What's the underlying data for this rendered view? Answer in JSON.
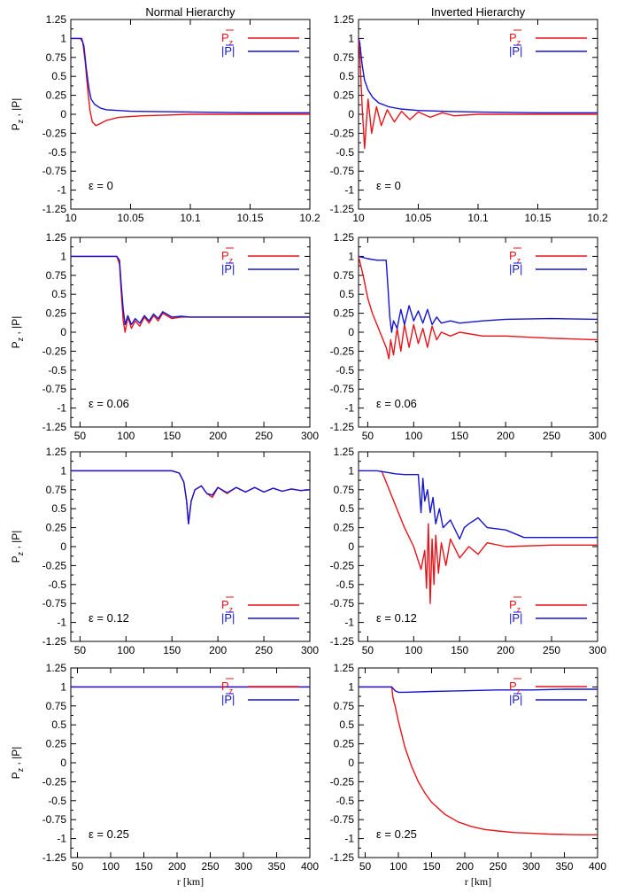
{
  "columns": [
    "Normal Hierarchy",
    "Inverted Hierarchy"
  ],
  "xlabel": "r [km]",
  "ylabel": {
    "pz": "P",
    "pz_sub": "z",
    "sep": " , ",
    "pabs": "|P|"
  },
  "legend": {
    "pz": "P",
    "pz_sub": "z",
    "pabs": "|P|"
  },
  "colors": {
    "pz": "#e8141a",
    "pabs": "#1515d0",
    "axis": "#000000"
  },
  "chart_data": [
    {
      "type": "line",
      "panel": "normal-eps-0",
      "hierarchy": "Normal Hierarchy",
      "annotation": "ε = 0",
      "xlim": [
        10,
        10.2
      ],
      "ylim": [
        -1.25,
        1.25
      ],
      "xticks": [
        "10",
        "10.05",
        "10.1",
        "10.15",
        "10.2"
      ],
      "yticks": [
        "-1.25",
        "-1",
        "-0.75",
        "-0.5",
        "-0.25",
        "0",
        "0.25",
        "0.5",
        "0.75",
        "1",
        "1.25"
      ],
      "legend_position": "top-right",
      "series": [
        {
          "key": "pz",
          "x": [
            10,
            10.008,
            10.01,
            10.012,
            10.014,
            10.016,
            10.018,
            10.021,
            10.025,
            10.03,
            10.04,
            10.06,
            10.08,
            10.1,
            10.15,
            10.2
          ],
          "y": [
            1,
            1,
            0.95,
            0.7,
            0.35,
            0.05,
            -0.1,
            -0.15,
            -0.12,
            -0.08,
            -0.04,
            -0.02,
            -0.01,
            0,
            0,
            0
          ]
        },
        {
          "key": "pabs",
          "x": [
            10,
            10.009,
            10.011,
            10.013,
            10.015,
            10.017,
            10.02,
            10.025,
            10.03,
            10.05,
            10.1,
            10.15,
            10.2
          ],
          "y": [
            1,
            1,
            0.9,
            0.6,
            0.35,
            0.2,
            0.13,
            0.08,
            0.06,
            0.04,
            0.03,
            0.02,
            0.02
          ]
        }
      ]
    },
    {
      "type": "line",
      "panel": "inverted-eps-0",
      "hierarchy": "Inverted Hierarchy",
      "annotation": "ε = 0",
      "xlim": [
        10,
        10.2
      ],
      "ylim": [
        -1.25,
        1.25
      ],
      "xticks": [
        "10",
        "10.05",
        "10.1",
        "10.15",
        "10.2"
      ],
      "yticks": [
        "-1.25",
        "-1",
        "-0.75",
        "-0.5",
        "-0.25",
        "0",
        "0.25",
        "0.5",
        "0.75",
        "1",
        "1.25"
      ],
      "legend_position": "top-right",
      "series": [
        {
          "key": "pz",
          "x": [
            10,
            10.001,
            10.003,
            10.005,
            10.008,
            10.011,
            10.015,
            10.019,
            10.024,
            10.03,
            10.036,
            10.043,
            10.05,
            10.06,
            10.07,
            10.08,
            10.1,
            10.15,
            10.2
          ],
          "y": [
            1,
            0.8,
            0.1,
            -0.45,
            0.2,
            -0.25,
            0.1,
            -0.15,
            0.06,
            -0.1,
            0.04,
            -0.07,
            0.03,
            -0.04,
            0.02,
            -0.02,
            0,
            0,
            0
          ]
        },
        {
          "key": "pabs",
          "x": [
            10,
            10.001,
            10.003,
            10.005,
            10.008,
            10.012,
            10.017,
            10.025,
            10.035,
            10.05,
            10.07,
            10.1,
            10.15,
            10.2
          ],
          "y": [
            1,
            0.95,
            0.65,
            0.45,
            0.32,
            0.22,
            0.15,
            0.1,
            0.07,
            0.05,
            0.04,
            0.03,
            0.02,
            0.02
          ]
        }
      ]
    },
    {
      "type": "line",
      "panel": "normal-eps-0.06",
      "hierarchy": "Normal Hierarchy",
      "annotation": "ε = 0.06",
      "xlim": [
        40,
        300
      ],
      "ylim": [
        -1.25,
        1.25
      ],
      "xticks": [
        "50",
        "100",
        "150",
        "200",
        "250",
        "300"
      ],
      "yticks": [
        "-1.25",
        "-1",
        "-0.75",
        "-0.5",
        "-0.25",
        "0",
        "0.25",
        "0.5",
        "0.75",
        "1",
        "1.25"
      ],
      "legend_position": "top-right",
      "series": [
        {
          "key": "pz",
          "x": [
            40,
            90,
            93,
            95,
            97,
            99,
            102,
            106,
            110,
            115,
            120,
            125,
            130,
            135,
            140,
            150,
            160,
            170,
            180,
            200,
            250,
            300
          ],
          "y": [
            1,
            1,
            0.9,
            0.5,
            0.15,
            0.0,
            0.2,
            0.05,
            0.15,
            0.08,
            0.2,
            0.12,
            0.22,
            0.15,
            0.25,
            0.18,
            0.2,
            0.2,
            0.2,
            0.2,
            0.2,
            0.2
          ]
        },
        {
          "key": "pabs",
          "x": [
            40,
            90,
            93,
            95,
            97,
            99,
            102,
            106,
            110,
            115,
            120,
            125,
            130,
            135,
            140,
            150,
            160,
            170,
            180,
            200,
            250,
            300
          ],
          "y": [
            1,
            1,
            0.95,
            0.6,
            0.3,
            0.1,
            0.22,
            0.1,
            0.18,
            0.12,
            0.22,
            0.15,
            0.24,
            0.18,
            0.27,
            0.2,
            0.21,
            0.2,
            0.2,
            0.2,
            0.2,
            0.2
          ]
        }
      ]
    },
    {
      "type": "line",
      "panel": "inverted-eps-0.06",
      "hierarchy": "Inverted Hierarchy",
      "annotation": "ε = 0.06",
      "xlim": [
        40,
        300
      ],
      "ylim": [
        -1.25,
        1.25
      ],
      "xticks": [
        "50",
        "100",
        "150",
        "200",
        "250",
        "300"
      ],
      "yticks": [
        "-1.25",
        "-1",
        "-0.75",
        "-0.5",
        "-0.25",
        "0",
        "0.25",
        "0.5",
        "0.75",
        "1",
        "1.25"
      ],
      "legend_position": "top-right",
      "series": [
        {
          "key": "pz",
          "x": [
            40,
            45,
            50,
            55,
            60,
            65,
            70,
            73,
            75,
            78,
            82,
            86,
            90,
            95,
            100,
            105,
            110,
            115,
            120,
            125,
            130,
            140,
            150,
            175,
            200,
            250,
            300
          ],
          "y": [
            1,
            0.75,
            0.45,
            0.25,
            0.1,
            -0.05,
            -0.2,
            -0.35,
            -0.1,
            -0.3,
            0.05,
            -0.25,
            0.1,
            -0.2,
            0.1,
            -0.15,
            0.05,
            -0.2,
            0.08,
            -0.1,
            0.0,
            -0.05,
            0.0,
            -0.05,
            -0.05,
            -0.08,
            -0.1
          ]
        },
        {
          "key": "pabs",
          "x": [
            40,
            50,
            60,
            70,
            72,
            74,
            76,
            78,
            82,
            86,
            90,
            95,
            100,
            105,
            110,
            115,
            120,
            125,
            130,
            140,
            150,
            175,
            200,
            250,
            300
          ],
          "y": [
            1,
            0.97,
            0.95,
            0.95,
            0.6,
            0.2,
            0.0,
            0.15,
            0.05,
            0.3,
            0.1,
            0.35,
            0.15,
            0.28,
            0.12,
            0.3,
            0.1,
            0.2,
            0.12,
            0.15,
            0.12,
            0.15,
            0.17,
            0.18,
            0.17
          ]
        }
      ]
    },
    {
      "type": "line",
      "panel": "normal-eps-0.12",
      "hierarchy": "Normal Hierarchy",
      "annotation": "ε = 0.12",
      "xlim": [
        40,
        300
      ],
      "ylim": [
        -1.25,
        1.25
      ],
      "xticks": [
        "50",
        "100",
        "150",
        "200",
        "250",
        "300"
      ],
      "yticks": [
        "-1.25",
        "-1",
        "-0.75",
        "-0.5",
        "-0.25",
        "0",
        "0.25",
        "0.5",
        "0.75",
        "1",
        "1.25"
      ],
      "legend_position": "bottom-right",
      "series": [
        {
          "key": "pz",
          "x": [
            40,
            150,
            158,
            163,
            166,
            168,
            171,
            175,
            182,
            188,
            194,
            200,
            210,
            220,
            230,
            240,
            250,
            260,
            270,
            280,
            290,
            300
          ],
          "y": [
            1,
            1,
            0.97,
            0.85,
            0.6,
            0.3,
            0.6,
            0.75,
            0.8,
            0.7,
            0.65,
            0.78,
            0.7,
            0.78,
            0.72,
            0.78,
            0.72,
            0.77,
            0.73,
            0.76,
            0.74,
            0.75
          ]
        },
        {
          "key": "pabs",
          "x": [
            40,
            150,
            158,
            163,
            166,
            168,
            171,
            175,
            182,
            188,
            194,
            200,
            210,
            220,
            230,
            240,
            250,
            260,
            270,
            280,
            290,
            300
          ],
          "y": [
            1,
            1,
            0.97,
            0.85,
            0.6,
            0.3,
            0.6,
            0.75,
            0.8,
            0.7,
            0.68,
            0.78,
            0.71,
            0.78,
            0.72,
            0.78,
            0.72,
            0.77,
            0.73,
            0.76,
            0.74,
            0.75
          ]
        }
      ]
    },
    {
      "type": "line",
      "panel": "inverted-eps-0.12",
      "hierarchy": "Inverted Hierarchy",
      "annotation": "ε = 0.12",
      "xlim": [
        40,
        300
      ],
      "ylim": [
        -1.25,
        1.25
      ],
      "xticks": [
        "50",
        "100",
        "150",
        "200",
        "250",
        "300"
      ],
      "yticks": [
        "-1.25",
        "-1",
        "-0.75",
        "-0.5",
        "-0.25",
        "0",
        "0.25",
        "0.5",
        "0.75",
        "1",
        "1.25"
      ],
      "legend_position": "bottom-right",
      "series": [
        {
          "key": "pz",
          "x": [
            65,
            70,
            80,
            90,
            100,
            108,
            112,
            114,
            116,
            118,
            120,
            122,
            124,
            127,
            130,
            135,
            140,
            150,
            160,
            170,
            180,
            200,
            250,
            300
          ],
          "y": [
            1,
            0.85,
            0.55,
            0.25,
            0.0,
            -0.3,
            -0.05,
            -0.55,
            0.3,
            -0.75,
            0.1,
            -0.5,
            0.15,
            -0.35,
            0.05,
            -0.25,
            0.1,
            -0.15,
            0.0,
            -0.1,
            0.05,
            0.0,
            0.02,
            0.02
          ]
        },
        {
          "key": "pabs",
          "x": [
            40,
            60,
            70,
            80,
            90,
            100,
            105,
            108,
            110,
            112,
            115,
            118,
            121,
            124,
            128,
            132,
            140,
            150,
            155,
            160,
            170,
            180,
            200,
            220,
            250,
            300
          ],
          "y": [
            1,
            1,
            0.98,
            0.96,
            0.95,
            0.95,
            0.95,
            0.45,
            0.9,
            0.6,
            0.75,
            0.45,
            0.65,
            0.3,
            0.5,
            0.25,
            0.35,
            0.1,
            0.25,
            0.3,
            0.38,
            0.25,
            0.22,
            0.12,
            0.12,
            0.12
          ]
        }
      ]
    },
    {
      "type": "line",
      "panel": "normal-eps-0.25",
      "hierarchy": "Normal Hierarchy",
      "annotation": "ε = 0.25",
      "xlim": [
        40,
        400
      ],
      "ylim": [
        -1.25,
        1.25
      ],
      "xticks": [
        "50",
        "100",
        "150",
        "200",
        "250",
        "300",
        "350",
        "400"
      ],
      "yticks": [
        "-1.25",
        "-1",
        "-0.75",
        "-0.5",
        "-0.25",
        "0",
        "0.25",
        "0.5",
        "0.75",
        "1",
        "1.25"
      ],
      "legend_position": "top-right",
      "series": [
        {
          "key": "pz",
          "x": [
            40,
            400
          ],
          "y": [
            1,
            1
          ]
        },
        {
          "key": "pabs",
          "x": [
            40,
            400
          ],
          "y": [
            1,
            1
          ]
        }
      ]
    },
    {
      "type": "line",
      "panel": "inverted-eps-0.25",
      "hierarchy": "Inverted Hierarchy",
      "annotation": "ε = 0.25",
      "xlim": [
        40,
        400
      ],
      "ylim": [
        -1.25,
        1.25
      ],
      "xticks": [
        "50",
        "100",
        "150",
        "200",
        "250",
        "300",
        "350",
        "400"
      ],
      "yticks": [
        "-1.25",
        "-1",
        "-0.75",
        "-0.5",
        "-0.25",
        "0",
        "0.25",
        "0.5",
        "0.75",
        "1",
        "1.25"
      ],
      "legend_position": "top-right",
      "series": [
        {
          "key": "pz",
          "x": [
            40,
            90,
            92,
            95,
            100,
            110,
            120,
            130,
            140,
            150,
            170,
            190,
            210,
            230,
            250,
            275,
            300,
            325,
            350,
            375,
            400
          ],
          "y": [
            1,
            1,
            0.85,
            0.75,
            0.55,
            0.2,
            -0.05,
            -0.25,
            -0.4,
            -0.52,
            -0.68,
            -0.78,
            -0.84,
            -0.88,
            -0.9,
            -0.92,
            -0.93,
            -0.94,
            -0.945,
            -0.95,
            -0.95
          ]
        },
        {
          "key": "pabs",
          "x": [
            40,
            90,
            95,
            100,
            110,
            150,
            200,
            250,
            300,
            350,
            400
          ],
          "y": [
            1,
            1,
            0.95,
            0.93,
            0.93,
            0.94,
            0.95,
            0.96,
            0.96,
            0.97,
            0.97
          ]
        }
      ]
    }
  ]
}
